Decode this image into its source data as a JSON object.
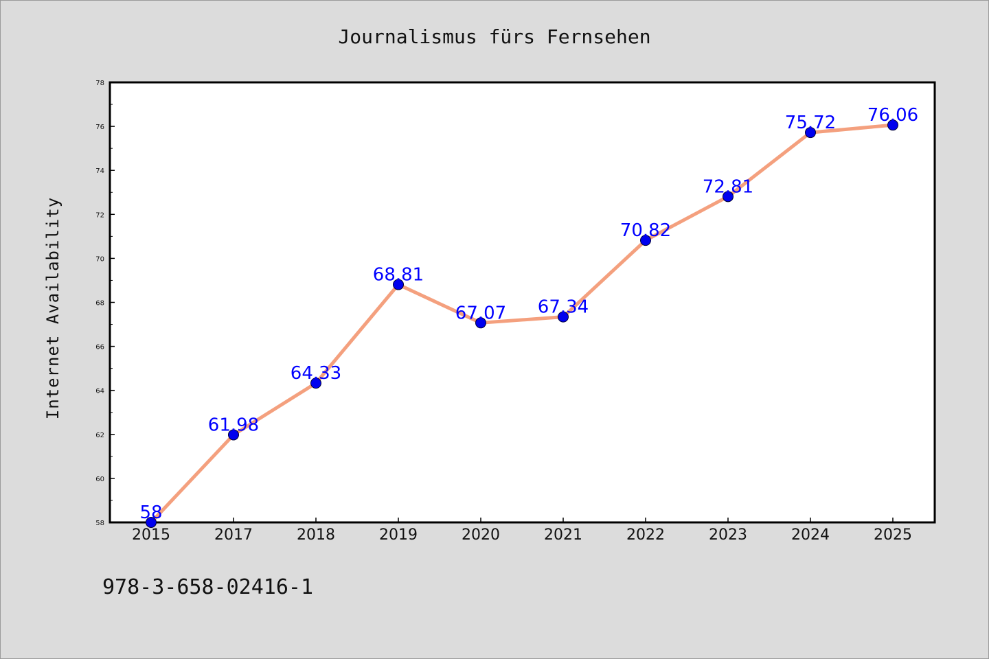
{
  "chart_data": {
    "type": "line",
    "title": "Journalismus fürs Fernsehen",
    "xlabel": "",
    "ylabel": "Internet Availability",
    "categories": [
      "2015",
      "2017",
      "2018",
      "2019",
      "2020",
      "2021",
      "2022",
      "2023",
      "2024",
      "2025"
    ],
    "series": [
      {
        "values": [
          58,
          61.98,
          64.33,
          68.81,
          67.07,
          67.34,
          70.82,
          72.81,
          75.72,
          76.06
        ],
        "labels": [
          "58",
          "61.98",
          "64.33",
          "68.81",
          "67.07",
          "67.34",
          "70.82",
          "72.81",
          "75.72",
          "76.06"
        ],
        "line_color": "#f4a07e",
        "marker_color": "#0000ee"
      }
    ],
    "ylim": [
      58,
      78
    ],
    "yticks": [
      "58",
      "60",
      "62",
      "64",
      "66",
      "68",
      "70",
      "72",
      "74",
      "76",
      "78"
    ],
    "grid": false,
    "legend": "none"
  },
  "footer": {
    "isbn": "978-3-658-02416-1"
  },
  "colors": {
    "background": "#dcdcdc",
    "plot_background": "#ffffff",
    "label_color": "#0000ff"
  }
}
